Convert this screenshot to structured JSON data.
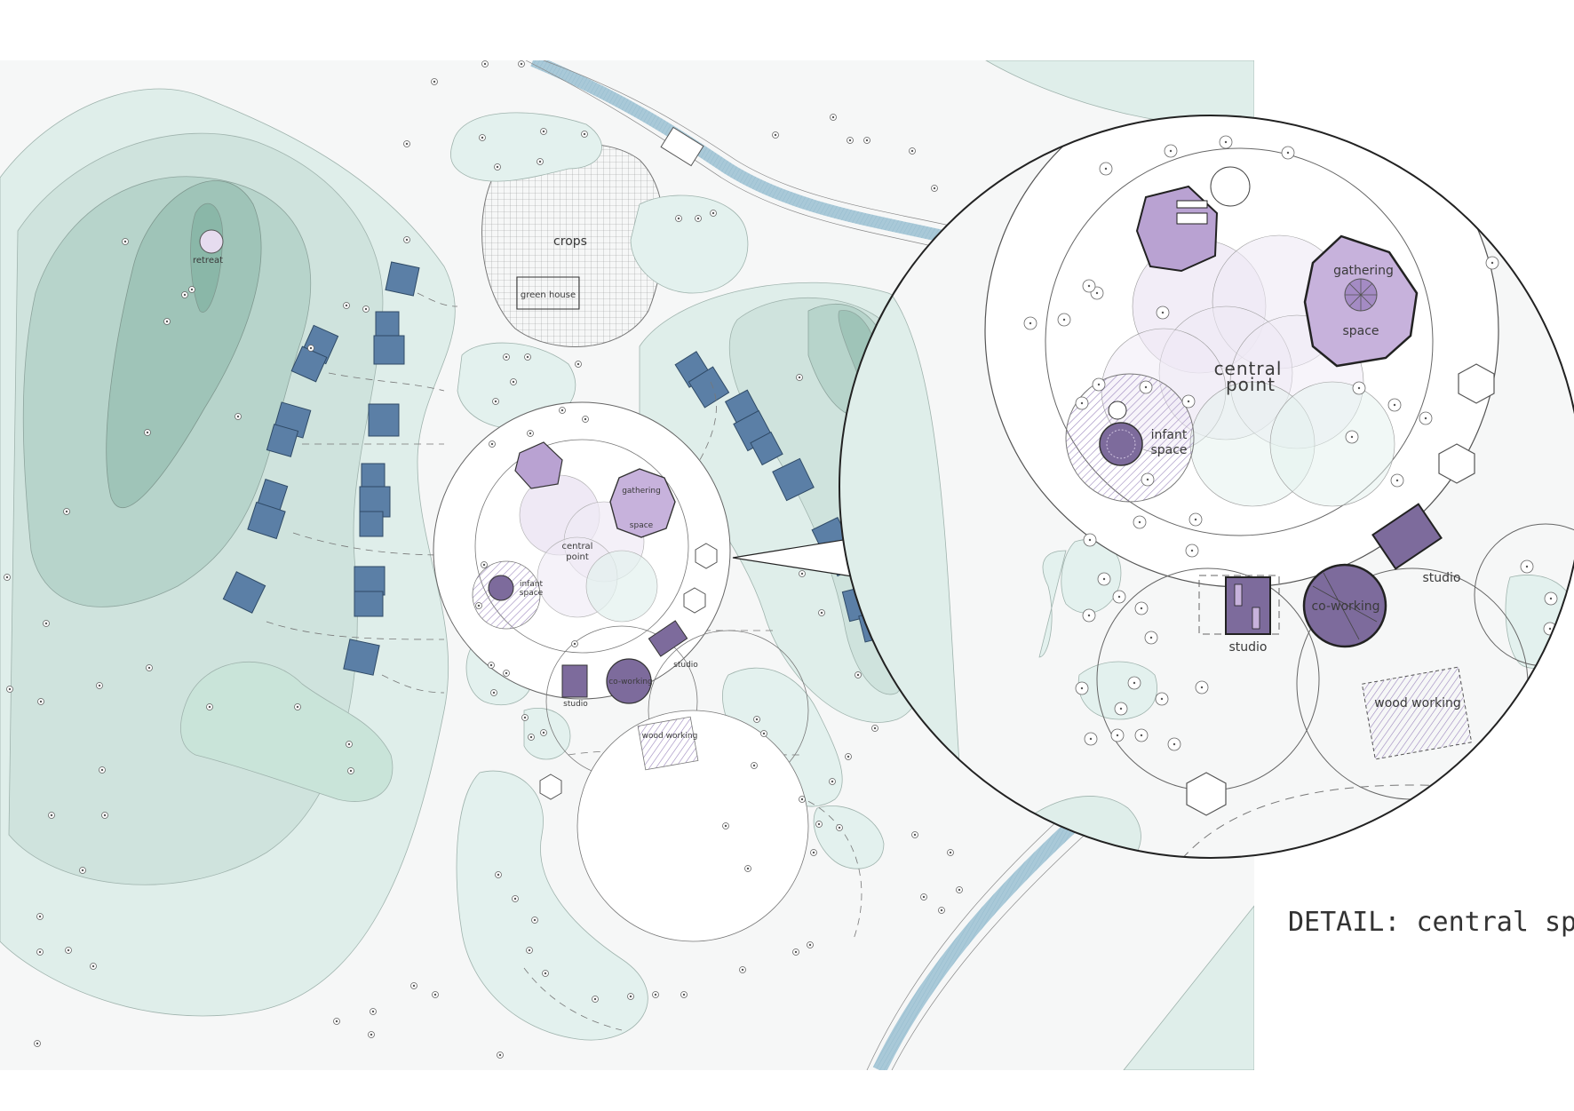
{
  "labels": {
    "retreat_left": "retreat",
    "retreat_right": "retreat",
    "crops": "crops",
    "green_house": "green house",
    "central_point": "central point",
    "central_line1": "central",
    "central_line2": "point",
    "gathering_line1": "gathering",
    "gathering_line2": "space",
    "infant_line1": "infant",
    "infant_line2": "space",
    "studio": "studio",
    "co_working": "co-working",
    "wood_working": "wood working",
    "caption": "DETAIL: central space"
  },
  "colors": {
    "site_bg": "#f6f7f7",
    "contour_1": "#dfeeea",
    "contour_2": "#cfe3dd",
    "contour_3": "#b7d4cb",
    "contour_4": "#9fc4b8",
    "cabin": "#5b7fa6",
    "purple_light": "#e6dcef",
    "purple_mid": "#c7b2dc",
    "purple_dark": "#7d6b9c",
    "road": "#a9c9d8"
  }
}
